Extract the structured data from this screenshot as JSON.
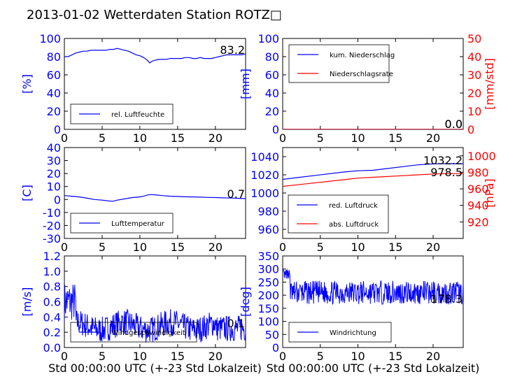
{
  "page": {
    "title": "2013-01-02 Wetterdaten Station ROTZ□"
  },
  "colors": {
    "primary": "#0000ff",
    "secondary": "#ff0000",
    "light_blue": "#8080ff"
  },
  "chart_data": [
    {
      "id": "humidity",
      "type": "line",
      "ylabel": "[%]",
      "xlim": [
        0,
        24
      ],
      "ylim": [
        0,
        100
      ],
      "xticks": [
        0,
        5,
        10,
        15,
        20
      ],
      "yticks": [
        0,
        20,
        40,
        60,
        80,
        100
      ],
      "current_value": "83.2",
      "legend": {
        "placement": "lower-left",
        "entries": [
          "rel. Luftfeuchte"
        ]
      },
      "series": [
        {
          "name": "rel. Luftfeuchte",
          "color": "#0000ff",
          "x": [
            0,
            0.5,
            1,
            1.5,
            2,
            2.5,
            3,
            3.5,
            4,
            4.5,
            5,
            5.5,
            6,
            6.5,
            7,
            7.5,
            8,
            8.5,
            9,
            9.5,
            10,
            10.5,
            11,
            11.3,
            11.6,
            12,
            12.5,
            13,
            13.5,
            14,
            14.5,
            15,
            15.5,
            16,
            16.5,
            17,
            17.5,
            18,
            18.5,
            19,
            19.5,
            20,
            20.5,
            21,
            21.5,
            22,
            22.5,
            23,
            23.5,
            24
          ],
          "y": [
            80,
            80,
            82,
            84,
            85,
            86,
            86,
            87,
            87,
            87,
            87,
            87,
            88,
            88,
            89,
            88,
            87,
            86,
            84,
            82,
            81,
            79,
            76,
            73,
            75,
            76,
            77,
            77,
            77,
            78,
            78,
            78,
            78,
            79,
            79,
            78,
            78,
            79,
            78,
            78,
            78,
            79,
            80,
            81,
            82,
            82,
            82,
            82,
            82,
            83
          ]
        }
      ]
    },
    {
      "id": "precip",
      "type": "line",
      "ylabel": "[mm]",
      "y2label": "[mm/std]",
      "xlim": [
        0,
        24
      ],
      "ylim": [
        0,
        100
      ],
      "y2lim": [
        0,
        50
      ],
      "xticks": [
        0,
        5,
        10,
        15,
        20
      ],
      "yticks": [
        0,
        20,
        40,
        60,
        80,
        100
      ],
      "y2ticks": [
        0,
        10,
        20,
        30,
        40,
        50
      ],
      "current_values": [
        "0.0",
        "0.0"
      ],
      "legend": {
        "placement": "upper-left",
        "entries": [
          "kum. Niederschlag",
          "Niederschlagsrate"
        ]
      },
      "series": [
        {
          "name": "kum. Niederschlag",
          "color": "#0000ff",
          "axis": "left",
          "x": [
            0,
            24
          ],
          "y": [
            0,
            0
          ]
        },
        {
          "name": "Niederschlagsrate",
          "color": "#ff0000",
          "axis": "right",
          "x": [
            0,
            24
          ],
          "y": [
            0,
            0
          ]
        }
      ]
    },
    {
      "id": "temperature",
      "type": "line",
      "ylabel": "[C]",
      "xlim": [
        0,
        24
      ],
      "ylim": [
        -30,
        40
      ],
      "xticks": [
        0,
        5,
        10,
        15,
        20
      ],
      "yticks": [
        -30,
        -20,
        -10,
        0,
        10,
        20,
        30,
        40
      ],
      "current_value": "0.7",
      "legend": {
        "placement": "lower-left",
        "entries": [
          "Lufttemperatur"
        ]
      },
      "series": [
        {
          "name": "Lufttemperatur",
          "color": "#0000ff",
          "x": [
            0,
            1,
            2,
            3,
            4,
            5,
            6,
            6.5,
            7,
            8,
            9,
            10,
            10.5,
            11,
            11.5,
            12,
            13,
            14,
            15,
            16,
            17,
            18,
            19,
            20,
            21,
            22,
            23,
            24
          ],
          "y": [
            3,
            2.5,
            2,
            1,
            0,
            -0.5,
            -1.2,
            -1.3,
            -0.5,
            0.5,
            1.5,
            2,
            2.5,
            3.5,
            3.8,
            3.6,
            3,
            2.5,
            2.3,
            2.1,
            2,
            1.8,
            1.6,
            1.5,
            1.3,
            1.1,
            0.9,
            0.7
          ]
        }
      ]
    },
    {
      "id": "pressure",
      "type": "line",
      "y2label": "[hPa]",
      "xlim": [
        0,
        24
      ],
      "ylim": [
        950,
        1050
      ],
      "y2lim": [
        900,
        1010
      ],
      "xticks": [
        0,
        5,
        10,
        15,
        20
      ],
      "yticks": [
        960,
        980,
        1000,
        1020,
        1040
      ],
      "y2ticks": [
        920,
        940,
        960,
        980,
        1000
      ],
      "current_values": [
        "1032.2",
        "978.5"
      ],
      "legend": {
        "placement": "lower-left",
        "entries": [
          "red. Luftdruck",
          "abs. Luftdruck"
        ]
      },
      "series": [
        {
          "name": "red. Luftdruck",
          "color": "#0000ff",
          "axis": "left",
          "x": [
            0,
            2,
            4,
            6,
            8,
            10,
            12,
            14,
            16,
            18,
            20,
            22,
            24
          ],
          "y": [
            1015,
            1017,
            1019,
            1021,
            1023,
            1024.5,
            1025,
            1027,
            1029,
            1031,
            1032,
            1032.3,
            1032.2
          ]
        },
        {
          "name": "abs. Luftdruck",
          "color": "#ff0000",
          "axis": "right",
          "x": [
            0,
            2,
            4,
            6,
            8,
            10,
            12,
            14,
            16,
            18,
            20,
            22,
            24
          ],
          "y": [
            963,
            965,
            967,
            969,
            971,
            973,
            974,
            975,
            976,
            977,
            978,
            978.4,
            978.5
          ]
        }
      ]
    },
    {
      "id": "wind_speed",
      "type": "line",
      "ylabel": "[m/s]",
      "xlabel": "Std 00:00:00 UTC (+-23 Std Lokalzeit)",
      "xlim": [
        0,
        24
      ],
      "ylim": [
        0,
        1.2
      ],
      "xticks": [
        0,
        5,
        10,
        15,
        20
      ],
      "yticks": [
        0.0,
        0.2,
        0.4,
        0.6,
        0.8,
        1.0,
        1.2
      ],
      "current_value": "0.1",
      "legend": {
        "placement": "lower-left",
        "entries": [
          "Windgeschwindigkeit"
        ]
      },
      "series": [
        {
          "name": "Windgeschwindigkeit",
          "color": "#0000ff",
          "style": "noisy",
          "base": 0.3,
          "amplitude": 0.35,
          "seed": 7
        }
      ]
    },
    {
      "id": "wind_dir",
      "type": "line",
      "ylabel": "[deg]",
      "xlabel": "Std 00:00:00 UTC (+-23 Std Lokalzeit)",
      "xlim": [
        0,
        24
      ],
      "ylim": [
        0,
        350
      ],
      "xticks": [
        0,
        5,
        10,
        15,
        20
      ],
      "yticks": [
        0,
        50,
        100,
        150,
        200,
        250,
        300,
        350
      ],
      "current_value": "178.3",
      "legend": {
        "placement": "lower-left",
        "entries": [
          "Windrichtung"
        ]
      },
      "series": [
        {
          "name": "Windrichtung",
          "color": "#0000ff",
          "style": "noisy",
          "base": 210,
          "amplitude": 90,
          "seed": 13
        }
      ]
    }
  ]
}
